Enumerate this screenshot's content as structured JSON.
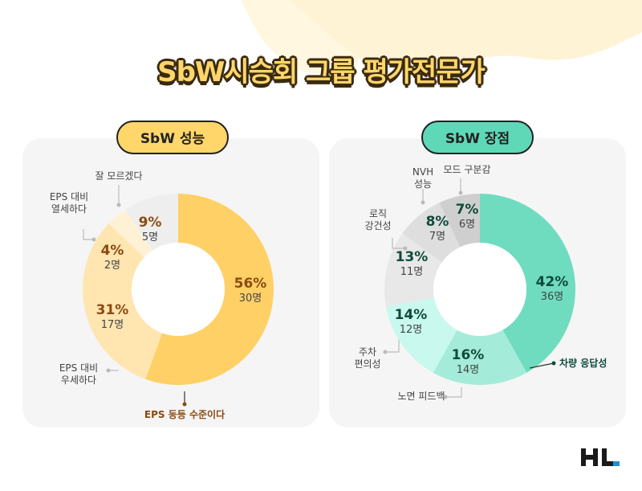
{
  "title": "SbW시승회 그룹 평가전문가",
  "colors": {
    "title_fill": "#ffd66a",
    "outline": "#3a2a10",
    "panel_bg": "#f5f5f5"
  },
  "chart_data": [
    {
      "type": "pie",
      "donut": true,
      "title": "SbW 성능",
      "pill_color": "#ffd66a",
      "value_color": "#8b4a12",
      "slices": [
        {
          "label": "EPS 동등 수준이다",
          "percent": "56%",
          "count": "30명",
          "value": 30,
          "color": "#ffd066",
          "highlight": true
        },
        {
          "label": "EPS 대비 우세하다",
          "percent": "31%",
          "count": "17명",
          "value": 17,
          "color": "#ffe5b0"
        },
        {
          "label": "EPS 대비 열세하다",
          "percent": "4%",
          "count": "2명",
          "value": 2,
          "color": "#fff1d6"
        },
        {
          "label": "잘 모르겠다",
          "percent": "9%",
          "count": "5명",
          "value": 5,
          "color": "#eeeeee"
        }
      ]
    },
    {
      "type": "pie",
      "donut": true,
      "title": "SbW 장점",
      "pill_color": "#5fd8b8",
      "value_color": "#0f4a3a",
      "slices": [
        {
          "label": "차량 응답성",
          "percent": "42%",
          "count": "36명",
          "value": 36,
          "color": "#6fdcc0",
          "highlight": true
        },
        {
          "label": "노면 피드백",
          "percent": "16%",
          "count": "14명",
          "value": 14,
          "color": "#a4ecd9"
        },
        {
          "label": "주차 편의성",
          "percent": "14%",
          "count": "12명",
          "value": 12,
          "color": "#c9f8ef"
        },
        {
          "label": "로직 강건성",
          "percent": "13%",
          "count": "11명",
          "value": 11,
          "color": "#e8e8e8"
        },
        {
          "label": "NVH 성능",
          "percent": "8%",
          "count": "7명",
          "value": 7,
          "color": "#dedede"
        },
        {
          "label": "모드 구분감",
          "percent": "7%",
          "count": "6명",
          "value": 6,
          "color": "#cfcfcf"
        }
      ]
    }
  ],
  "logo": "HL"
}
